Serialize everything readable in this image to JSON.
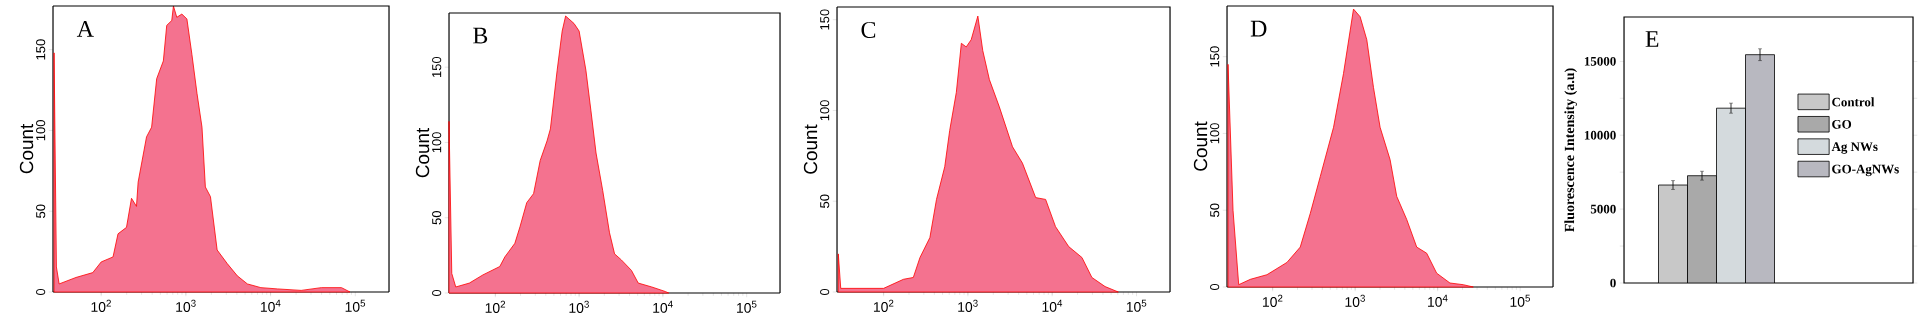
{
  "chart_data": [
    {
      "type": "area",
      "title": "A",
      "ylabel": "Count",
      "log": "x",
      "color": "#f4728f",
      "x": [
        27.8,
        29.6,
        31.9,
        50.4,
        79.6,
        100,
        138,
        158,
        199,
        228,
        261,
        273,
        343,
        394,
        452,
        542,
        594,
        681,
        713,
        781,
        896,
        1028,
        1178,
        1352,
        1549,
        1698,
        1950,
        2339,
        3076,
        4047,
        5321,
        7674,
        12110,
        22960,
        39720,
        68710,
        86490
      ],
      "values": [
        148,
        15.5,
        5,
        9,
        12,
        18.6,
        21.7,
        36,
        40,
        58,
        53,
        68,
        96,
        102,
        132,
        143,
        165,
        168,
        177,
        170,
        172,
        169,
        147,
        123,
        102,
        65,
        59,
        26,
        17.6,
        10,
        5,
        2.7,
        1.9,
        1,
        2.7,
        2.7,
        0
      ],
      "xlim": [
        27,
        250000
      ],
      "ylim": [
        0,
        177
      ],
      "xticks": [
        {
          "value": 100,
          "label": "10$^{2}$"
        },
        {
          "value": 1000,
          "label": "10$^{3}$"
        },
        {
          "value": 10000,
          "label": "10$^{4}$"
        },
        {
          "value": 100000,
          "label": "10$^{5}$"
        }
      ],
      "yticks": [
        0,
        50,
        100,
        150
      ]
    },
    {
      "type": "area",
      "title": "B",
      "ylabel": "Count",
      "log": "x",
      "color": "#f4728f",
      "x": [
        28,
        30.2,
        33.7,
        49,
        71,
        113,
        130,
        171,
        197,
        237,
        286,
        343,
        414,
        454,
        547,
        628,
        690,
        757,
        870,
        1000,
        1205,
        1384,
        1592,
        1914,
        2306,
        2649,
        3191,
        4214,
        5078,
        7362,
        10670,
        11720
      ],
      "values": [
        114,
        13,
        4,
        6.6,
        12,
        17.6,
        24,
        33,
        44,
        60,
        66,
        88,
        101,
        109,
        148,
        174,
        184,
        182,
        179,
        174,
        148,
        121,
        93,
        68,
        40,
        26,
        22,
        15,
        6.6,
        4,
        1,
        0
      ],
      "xlim": [
        28,
        250000
      ],
      "ylim": [
        0,
        186
      ],
      "xticks": [
        {
          "value": 100,
          "label": "10$^{2}$"
        },
        {
          "value": 1000,
          "label": "10$^{3}$"
        },
        {
          "value": 10000,
          "label": "10$^{4}$"
        },
        {
          "value": 100000,
          "label": "10$^{5}$"
        }
      ],
      "yticks": [
        0,
        50,
        100,
        150
      ]
    },
    {
      "type": "area",
      "title": "C",
      "ylabel": "Count",
      "log": "x",
      "color": "#f4728f",
      "x": [
        29,
        31,
        100,
        172,
        225,
        270,
        354,
        424,
        531,
        608,
        729,
        836,
        955,
        1094,
        1312,
        1500,
        1799,
        2360,
        3383,
        4436,
        6368,
        8356,
        10950,
        15710,
        22540,
        29580,
        42390,
        60830
      ],
      "values": [
        21,
        2,
        2,
        7,
        8,
        19,
        30,
        51,
        69,
        89,
        110,
        137,
        135,
        139,
        152,
        133,
        117,
        102,
        80,
        71,
        52,
        51,
        36,
        25,
        19,
        8,
        3,
        0
      ],
      "xlim": [
        28,
        250000
      ],
      "ylim": [
        0,
        157
      ],
      "xticks": [
        {
          "value": 100,
          "label": "10$^{2}$"
        },
        {
          "value": 1000,
          "label": "10$^{3}$"
        },
        {
          "value": 10000,
          "label": "10$^{4}$"
        },
        {
          "value": 100000,
          "label": "10$^{5}$"
        }
      ],
      "yticks": [
        0,
        50,
        100,
        150
      ]
    },
    {
      "type": "area",
      "title": "D",
      "ylabel": "Count",
      "log": "x",
      "color": "#f4728f",
      "x": [
        28.8,
        33.1,
        38.8,
        53.7,
        85.3,
        149,
        216,
        286,
        378,
        547,
        722,
        955,
        1149,
        1384,
        1667,
        2006,
        2649,
        3191,
        4214,
        5572,
        7362,
        9727,
        14090,
        20420,
        26980
      ],
      "values": [
        145,
        50,
        1.5,
        5,
        8,
        16,
        26,
        48,
        72,
        104,
        139,
        181,
        176,
        161,
        130,
        104,
        83,
        59,
        44,
        26,
        22,
        9,
        2.6,
        1.5,
        0
      ],
      "xlim": [
        28,
        250000
      ],
      "ylim": [
        0,
        183
      ],
      "xticks": [
        {
          "value": 100,
          "label": "10$^{2}$"
        },
        {
          "value": 1000,
          "label": "10$^{3}$"
        },
        {
          "value": 10000,
          "label": "10$^{4}$"
        },
        {
          "value": 100000,
          "label": "10$^{5}$"
        }
      ],
      "yticks": [
        0,
        50,
        100,
        150
      ]
    },
    {
      "type": "bar",
      "title": "E",
      "ylabel": "Fluorescence Intensity (a.u)",
      "categories": [
        null
      ],
      "series": [
        {
          "name": "Control",
          "color": "#c8c8c8",
          "values": [
            6630
          ],
          "errors": [
            300
          ]
        },
        {
          "name": "GO",
          "color": "#a9a9a9",
          "values": [
            7260
          ],
          "errors": [
            300
          ]
        },
        {
          "name": "Ag NWs",
          "color": "#d4dadd",
          "values": [
            11830
          ],
          "errors": [
            340
          ]
        },
        {
          "name": "GO-AgNWs",
          "color": "#b8b8c0",
          "values": [
            15450
          ],
          "errors": [
            400
          ]
        }
      ],
      "ylim": [
        0,
        18000
      ],
      "yticks": [
        0,
        {
          "value": 2500,
          "label": null
        },
        5000,
        {
          "value": 7500,
          "label": null
        },
        10000,
        {
          "value": 12500,
          "label": null
        },
        15000
      ],
      "legend": "right"
    }
  ]
}
